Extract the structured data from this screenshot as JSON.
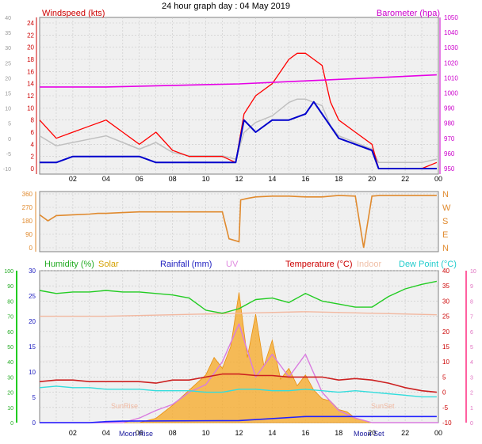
{
  "title": "24 hour graph day : 04 May 2019",
  "colors": {
    "wind_gust": "#ff0000",
    "wind_avg": "#0000cc",
    "baro": "#e600e6",
    "wind_grey": "#c0c0c0",
    "dir": "#e08a2e",
    "humidity": "#22cc22",
    "solar": "#f7a823",
    "rain": "#2020ff",
    "uv": "#d97be0",
    "temperature": "#cc2020",
    "indoor": "#f2b8a0",
    "dewpoint": "#33dddd",
    "grid": "#c8c8c8",
    "panel_bg": "#f0f0f0"
  },
  "x_ticks": [
    "02",
    "04",
    "06",
    "08",
    "10",
    "12",
    "14",
    "16",
    "18",
    "20",
    "22",
    "00"
  ],
  "top": {
    "left_title": "Windspeed (kts)",
    "right_title": "Barometer (hpa)",
    "y_left_ticks": [
      "0",
      "2",
      "4",
      "6",
      "8",
      "10",
      "12",
      "14",
      "16",
      "18",
      "20",
      "22",
      "24"
    ],
    "y_far_ticks": [
      "-10",
      "-5",
      "0",
      "5",
      "10",
      "15",
      "20",
      "25",
      "30",
      "35",
      "40"
    ],
    "y_right_ticks": [
      "950",
      "960",
      "970",
      "980",
      "990",
      "1000",
      "1010",
      "1020",
      "1030",
      "1040",
      "1050"
    ]
  },
  "middle": {
    "y_left_ticks": [
      "0",
      "90",
      "180",
      "270",
      "360"
    ],
    "y_right_labels": [
      "N",
      "W",
      "S",
      "E",
      "N"
    ]
  },
  "bottom": {
    "legend": {
      "humidity": "Humidity (%)",
      "solar": "Solar",
      "rainfall": "Rainfall (mm)",
      "uv": "UV",
      "temperature": "Temperature (°C)",
      "indoor": "Indoor",
      "dewpoint": "Dew Point (°C)"
    },
    "y_humidity_ticks": [
      "0",
      "10",
      "20",
      "30",
      "40",
      "50",
      "60",
      "70",
      "80",
      "90",
      "100"
    ],
    "y_rain_ticks": [
      "0",
      "5",
      "10",
      "15",
      "20",
      "25",
      "30"
    ],
    "y_temp_ticks": [
      "-10",
      "-5",
      "0",
      "5",
      "10",
      "15",
      "20",
      "25",
      "30",
      "35",
      "40"
    ],
    "y_uv_ticks": [
      "0",
      "1",
      "2",
      "3",
      "4",
      "5",
      "6",
      "7",
      "8",
      "9",
      "10"
    ],
    "sunrise": "SunRise",
    "sunset": "SunSet",
    "moonrise": "Moon Rise",
    "moonset": "Moon Set"
  },
  "chart_data": [
    {
      "type": "line",
      "title": "24 hour graph day : 04 May 2019",
      "ylabel": "Windspeed (kts)",
      "y2label": "Barometer (hpa)",
      "xlim": [
        0,
        24
      ],
      "ylim": [
        0,
        24
      ],
      "y2lim": [
        950,
        1050
      ],
      "grid": true,
      "series": [
        {
          "name": "Windspeed (kts)",
          "x": [
            0,
            1,
            2,
            3,
            4,
            5,
            6,
            7,
            8,
            9,
            10,
            11,
            11.8,
            12.3,
            13,
            14,
            15,
            15.5,
            16,
            16.5,
            17,
            17.5,
            18,
            19,
            20,
            20.4,
            21,
            22,
            23,
            23.9
          ],
          "y": [
            8,
            5,
            6,
            7,
            8,
            6,
            4,
            6,
            3,
            2,
            2,
            2,
            1,
            9,
            12,
            14,
            18,
            19,
            19,
            18,
            17,
            11,
            8,
            6,
            4,
            0,
            0,
            0,
            0,
            1
          ]
        },
        {
          "name": "Average wind (kts)",
          "x": [
            0,
            1,
            2,
            3,
            4,
            5,
            6,
            7,
            8,
            9,
            10,
            11,
            11.8,
            12.3,
            13,
            14,
            15,
            16,
            16.5,
            17,
            17.5,
            18,
            19,
            20,
            20.4,
            21,
            22,
            23,
            23.9
          ],
          "y": [
            1,
            1,
            2,
            2,
            2,
            2,
            2,
            1,
            1,
            1,
            1,
            1,
            1,
            8,
            6,
            8,
            8,
            9,
            11,
            9,
            7,
            5,
            4,
            3,
            0,
            0,
            0,
            0,
            0
          ]
        },
        {
          "name": "Barometer (hpa)",
          "x": [
            0,
            4,
            8,
            12,
            16,
            20,
            23.9
          ],
          "y": [
            1004,
            1004,
            1005,
            1006,
            1008,
            1010,
            1012
          ]
        }
      ]
    },
    {
      "type": "line",
      "title": "",
      "ylabel": "Wind direction",
      "xlim": [
        0,
        24
      ],
      "ylim": [
        0,
        360
      ],
      "y_labels_right": [
        "N",
        "W",
        "S",
        "E",
        "N"
      ],
      "series": [
        {
          "name": "Wind direction",
          "x": [
            0,
            0.5,
            1,
            2,
            3,
            3.5,
            4,
            5,
            6,
            7,
            8,
            9,
            10,
            11,
            11.4,
            12,
            12.1,
            12.5,
            13,
            14,
            15,
            16,
            17,
            18,
            19,
            19.5,
            20,
            20.5,
            21,
            22,
            23,
            23.9
          ],
          "y": [
            220,
            180,
            215,
            220,
            225,
            230,
            230,
            235,
            240,
            240,
            240,
            240,
            240,
            240,
            60,
            40,
            320,
            330,
            340,
            345,
            345,
            340,
            340,
            350,
            345,
            0,
            345,
            350,
            350,
            350,
            350,
            350
          ]
        }
      ]
    },
    {
      "type": "line",
      "title": "",
      "xlim": [
        0,
        24
      ],
      "series": [
        {
          "name": "Humidity (%)",
          "x": [
            0,
            1,
            2,
            3,
            4,
            5,
            6,
            7,
            8,
            9,
            10,
            11,
            12,
            13,
            14,
            15,
            16,
            17,
            18,
            19,
            20,
            21,
            22,
            23,
            23.9
          ],
          "y": [
            87,
            85,
            86,
            86,
            87,
            86,
            86,
            85,
            84,
            82,
            74,
            72,
            75,
            81,
            82,
            79,
            85,
            80,
            78,
            76,
            76,
            83,
            88,
            91,
            93
          ]
        },
        {
          "name": "Temperature (°C)",
          "x": [
            0,
            1,
            2,
            3,
            4,
            5,
            6,
            7,
            8,
            9,
            10,
            11,
            12,
            13,
            14,
            15,
            16,
            17,
            18,
            19,
            20,
            21,
            22,
            23,
            23.9
          ],
          "y": [
            3.5,
            4,
            4,
            3.5,
            3.5,
            3.5,
            3.5,
            3,
            4,
            4,
            5,
            6,
            6,
            5.5,
            5.5,
            5,
            5,
            5,
            4,
            4.5,
            4,
            3,
            1.5,
            0.5,
            0
          ]
        },
        {
          "name": "Dew Point (°C)",
          "x": [
            0,
            1,
            2,
            3,
            4,
            5,
            6,
            7,
            8,
            9,
            10,
            11,
            12,
            13,
            14,
            15,
            16,
            17,
            18,
            19,
            20,
            21,
            22,
            23,
            23.9
          ],
          "y": [
            1.5,
            2,
            1.5,
            1.5,
            1,
            1,
            1,
            0.5,
            0.5,
            0.5,
            0,
            0,
            1,
            1,
            0.5,
            0.5,
            1,
            0.5,
            0,
            0.5,
            0,
            -0.5,
            -1,
            -1.5,
            -1.5
          ]
        },
        {
          "name": "Indoor",
          "x": [
            0,
            4,
            8,
            12,
            16,
            20,
            23.9
          ],
          "y": [
            25,
            25,
            25.5,
            26,
            26.5,
            26,
            25.5
          ]
        },
        {
          "name": "Rainfall (mm)",
          "x": [
            0,
            3,
            4,
            5,
            12,
            16,
            18,
            20,
            23.9
          ],
          "y": [
            0,
            0,
            0.2,
            0.3,
            0.4,
            1.2,
            1.2,
            1.2,
            1.2
          ]
        },
        {
          "name": "Solar",
          "x": [
            0,
            4,
            5,
            6,
            7,
            8,
            9,
            10,
            10.5,
            11,
            11.5,
            12,
            12.5,
            13,
            13.5,
            14,
            14.5,
            15,
            15.5,
            16,
            16.5,
            17,
            17.5,
            18,
            18.5,
            19,
            20,
            24
          ],
          "y": [
            0,
            0,
            0,
            0,
            20,
            80,
            150,
            220,
            300,
            250,
            350,
            600,
            300,
            500,
            260,
            380,
            200,
            250,
            170,
            220,
            150,
            110,
            100,
            60,
            50,
            20,
            0,
            0
          ]
        },
        {
          "name": "UV",
          "x": [
            0,
            4,
            5,
            6,
            7,
            8,
            9,
            10,
            11,
            12,
            13,
            14,
            15,
            16,
            17,
            18,
            19,
            20,
            24
          ],
          "y": [
            0,
            0,
            0,
            0.3,
            0.8,
            1.2,
            2,
            2.5,
            4,
            6.5,
            3,
            4.5,
            3,
            4.5,
            2,
            0.8,
            0.3,
            0,
            0
          ]
        }
      ]
    }
  ]
}
